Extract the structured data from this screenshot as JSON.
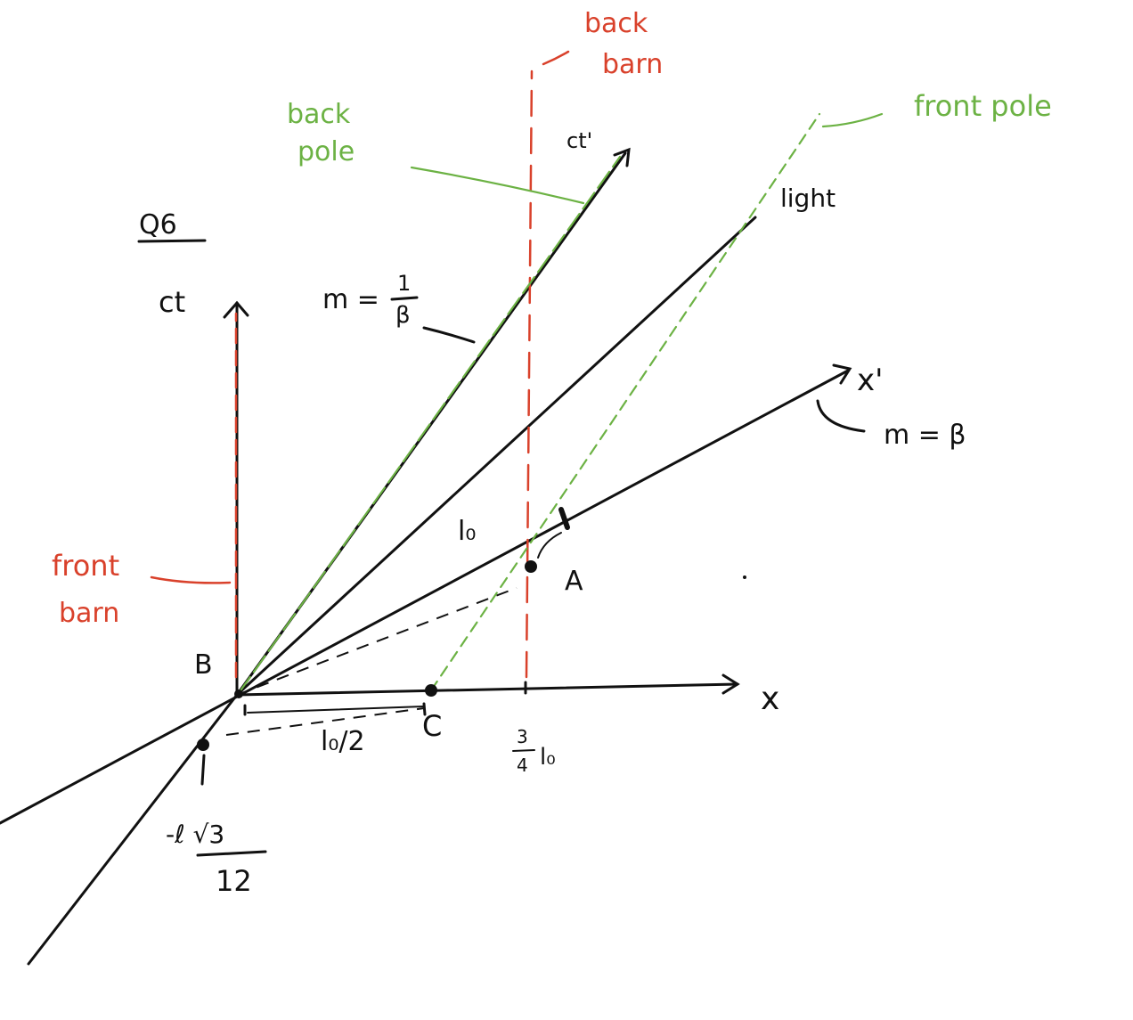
{
  "question_label": "Q6",
  "axes": {
    "ct": "ct",
    "x": "x",
    "ct_prime": "ct'",
    "x_prime": "x'",
    "light": "light"
  },
  "slopes": {
    "ct_prime_m": "m =",
    "ct_prime_num": "1",
    "ct_prime_den": "β",
    "x_prime": "m = β"
  },
  "labels": {
    "back_pole_1": "back",
    "back_pole_2": "pole",
    "back_barn_1": "back",
    "back_barn_2": "barn",
    "front_pole": "front pole",
    "front_barn_1": "front",
    "front_barn_2": "barn",
    "l0": "l₀",
    "point_A": "A",
    "point_B": "B",
    "point_C": "C",
    "l0_half": "l₀/2",
    "three_quarter_num": "3",
    "three_quarter_den": "4",
    "three_quarter_l0": "l₀",
    "neg_num": "-ℓ √3",
    "neg_den": "12"
  },
  "colors": {
    "ink": "#111111",
    "barn": "#d9412b",
    "pole": "#6cb244"
  }
}
